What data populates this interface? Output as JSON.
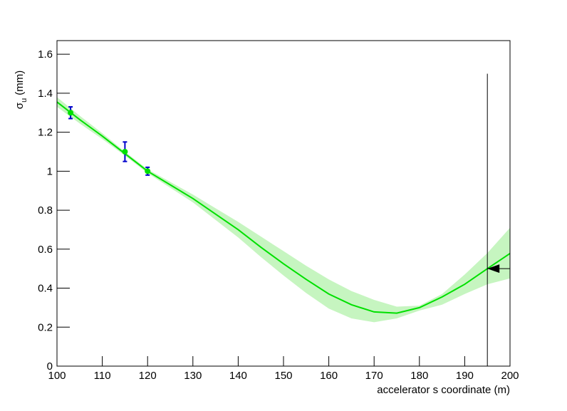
{
  "chart_data": {
    "type": "line",
    "x_label": "accelerator s coordinate (m)",
    "y_label_symbol": "σ",
    "y_label_subscript": "u",
    "y_label_unit": "(mm)",
    "xlim": [
      100,
      200
    ],
    "xticks": [
      100,
      110,
      120,
      130,
      140,
      150,
      160,
      170,
      180,
      190,
      200
    ],
    "ylim": [
      0,
      1.67
    ],
    "yticks": [
      0,
      0.2,
      0.4,
      0.6,
      0.8,
      1,
      1.2,
      1.4,
      1.6
    ],
    "fit": {
      "color": "#00e000",
      "band_color": "#c6f5c0",
      "x": [
        100,
        105,
        110,
        115,
        120,
        125,
        130,
        135,
        140,
        145,
        150,
        155,
        160,
        165,
        170,
        175,
        180,
        185,
        190,
        195,
        200
      ],
      "values": [
        1.355,
        1.265,
        1.18,
        1.09,
        1.0,
        0.93,
        0.86,
        0.78,
        0.7,
        0.61,
        0.525,
        0.445,
        0.37,
        0.315,
        0.278,
        0.272,
        0.3,
        0.355,
        0.42,
        0.5,
        0.578
      ],
      "upper": [
        1.38,
        1.285,
        1.195,
        1.1,
        1.01,
        0.945,
        0.88,
        0.81,
        0.74,
        0.665,
        0.59,
        0.515,
        0.445,
        0.385,
        0.34,
        0.305,
        0.31,
        0.37,
        0.47,
        0.58,
        0.71
      ],
      "lower": [
        1.33,
        1.245,
        1.165,
        1.08,
        0.99,
        0.915,
        0.84,
        0.75,
        0.66,
        0.56,
        0.465,
        0.375,
        0.295,
        0.245,
        0.225,
        0.245,
        0.285,
        0.315,
        0.37,
        0.42,
        0.45
      ]
    },
    "points": {
      "color": "#00e000",
      "error_color": "#0000cc",
      "x": [
        103,
        115,
        120
      ],
      "values": [
        1.3,
        1.1,
        1.0
      ],
      "errors": [
        0.03,
        0.05,
        0.02
      ]
    },
    "target": {
      "x": 195,
      "y": 0.5,
      "line_top": 1.5,
      "color": "#000000"
    }
  }
}
